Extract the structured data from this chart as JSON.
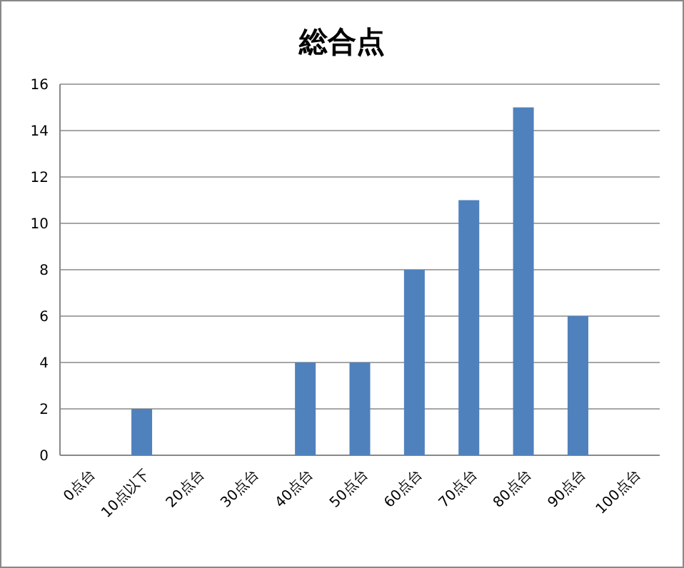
{
  "chart_data": {
    "type": "bar",
    "title": "総合点",
    "categories": [
      "0点台",
      "10点以下",
      "20点台",
      "30点台",
      "40点台",
      "50点台",
      "60点台",
      "70点台",
      "80点台",
      "90点台",
      "100点台"
    ],
    "values": [
      0,
      2,
      0,
      0,
      4,
      4,
      8,
      11,
      15,
      6,
      0
    ],
    "color": "#4f81bd",
    "ylim": [
      0,
      16
    ],
    "yticks": [
      0,
      2,
      4,
      6,
      8,
      10,
      12,
      14,
      16
    ],
    "grid": "y"
  }
}
